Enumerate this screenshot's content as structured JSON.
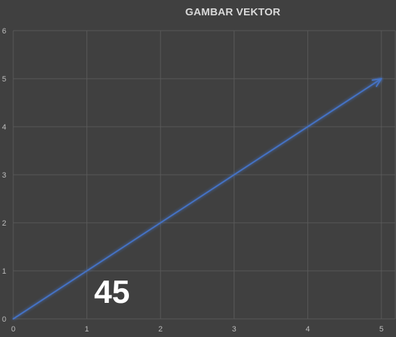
{
  "chart_data": {
    "type": "line",
    "title": "GAMBAR VEKTOR",
    "xlabel": "",
    "ylabel": "",
    "xlim": [
      0,
      5
    ],
    "ylim": [
      0,
      6
    ],
    "x_ticks": [
      "0",
      "1",
      "2",
      "3",
      "4",
      "5"
    ],
    "y_ticks": [
      "0",
      "1",
      "2",
      "3",
      "4",
      "5",
      "6"
    ],
    "grid": true,
    "legend": "none",
    "series": [
      {
        "x": [
          0,
          5
        ],
        "y": [
          0,
          5
        ],
        "style": "arrow",
        "color": "#4472c4"
      }
    ],
    "annotations": [
      {
        "text": "45",
        "color": "#ffffff"
      }
    ],
    "background_color": "#404040",
    "grid_color": "#595959"
  }
}
